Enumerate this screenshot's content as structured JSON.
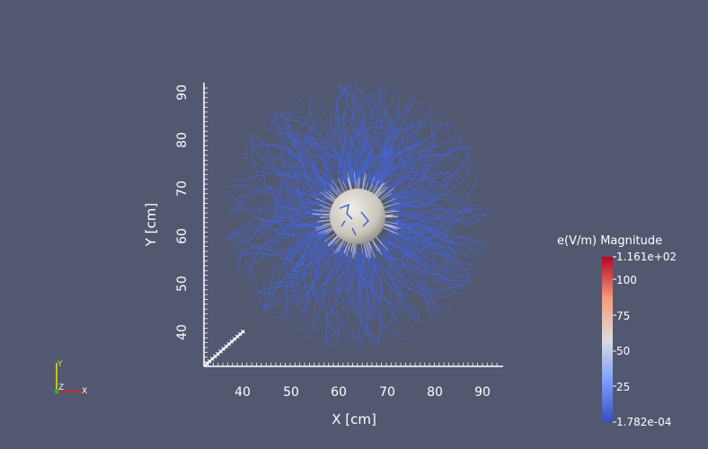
{
  "axes": {
    "x_title": "X [cm]",
    "y_title": "Y [cm]",
    "x_ticks": [
      "40",
      "50",
      "60",
      "70",
      "80",
      "90"
    ],
    "y_ticks": [
      "40",
      "50",
      "60",
      "70",
      "80",
      "90"
    ]
  },
  "colorbar": {
    "title": "e(V/m) Magnitude",
    "max_label": "1.161e+02",
    "min_label": "1.782e-04",
    "ticks": [
      "100",
      "75",
      "50",
      "25"
    ],
    "colors": {
      "high": "#b40426",
      "mid": "#dddddd",
      "low": "#3b4cc0"
    }
  },
  "orientation": {
    "y_label": "Y",
    "z_label": "Z",
    "x_label": "X"
  },
  "colors": {
    "background": "#525870",
    "streamline": "#4466dd",
    "sphere": "#d8d4cc"
  }
}
